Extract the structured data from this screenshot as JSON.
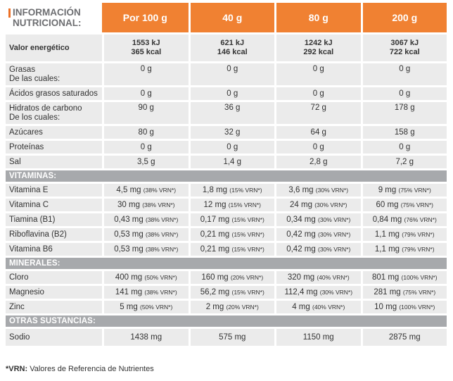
{
  "title": [
    "INFORMACIÓN",
    "NUTRICIONAL:"
  ],
  "headers": [
    "Por 100 g",
    "40 g",
    "80 g",
    "200 g"
  ],
  "energy": {
    "label": "Valor energético",
    "kj": [
      "1553 kJ",
      "621 kJ",
      "1242 kJ",
      "3067 kJ"
    ],
    "kcal": [
      "365 kcal",
      "146 kcal",
      "292 kcal",
      "722 kcal"
    ]
  },
  "macro_rows": [
    {
      "label": [
        "Grasas",
        "De las cuales:"
      ],
      "values": [
        "0 g",
        "0 g",
        "0 g",
        "0 g"
      ]
    },
    {
      "label": [
        "Ácidos grasos saturados"
      ],
      "values": [
        "0 g",
        "0 g",
        "0 g",
        "0 g"
      ]
    },
    {
      "label": [
        "Hidratos de carbono",
        "De los cuales:"
      ],
      "values": [
        "90 g",
        "36 g",
        "72 g",
        "178 g"
      ]
    },
    {
      "label": [
        "Azúcares"
      ],
      "values": [
        "80 g",
        "32 g",
        "64 g",
        "158 g"
      ]
    },
    {
      "label": [
        "Proteínas"
      ],
      "values": [
        "0 g",
        "0 g",
        "0 g",
        "0 g"
      ]
    },
    {
      "label": [
        "Sal"
      ],
      "values": [
        "3,5 g",
        "1,4 g",
        "2,8 g",
        "7,2 g"
      ]
    }
  ],
  "sections": {
    "vitamins": "VITAMINAS:",
    "minerals": "MINERALES:",
    "others": "OTRAS SUSTANCIAS:"
  },
  "vitamin_rows": [
    {
      "label": "Vitamina E",
      "values": [
        [
          "4,5 mg",
          "(38% VRN*)"
        ],
        [
          "1,8 mg",
          "(15% VRN*)"
        ],
        [
          "3,6 mg",
          "(30% VRN*)"
        ],
        [
          "9 mg",
          "(75% VRN*)"
        ]
      ]
    },
    {
      "label": "Vitamina C",
      "values": [
        [
          "30 mg",
          "(38% VRN*)"
        ],
        [
          "12 mg",
          "(15% VRN*)"
        ],
        [
          "24 mg",
          "(30% VRN*)"
        ],
        [
          "60 mg",
          "(75% VRN*)"
        ]
      ]
    },
    {
      "label": "Tiamina (B1)",
      "values": [
        [
          "0,43 mg",
          "(38% VRN*)"
        ],
        [
          "0,17 mg",
          "(15% VRN*)"
        ],
        [
          "0,34 mg",
          "(30% VRN*)"
        ],
        [
          "0,84 mg",
          "(76% VRN*)"
        ]
      ]
    },
    {
      "label": "Riboflavina (B2)",
      "values": [
        [
          "0,53 mg",
          "(38% VRN*)"
        ],
        [
          "0,21 mg",
          "(15% VRN*)"
        ],
        [
          "0,42 mg",
          "(30% VRN*)"
        ],
        [
          "1,1 mg",
          "(79% VRN*)"
        ]
      ]
    },
    {
      "label": "Vitamina B6",
      "values": [
        [
          "0,53 mg",
          "(38% VRN*)"
        ],
        [
          "0,21 mg",
          "(15% VRN*)"
        ],
        [
          "0,42 mg",
          "(30% VRN*)"
        ],
        [
          "1,1 mg",
          "(79% VRN*)"
        ]
      ]
    }
  ],
  "mineral_rows": [
    {
      "label": "Cloro",
      "values": [
        [
          "400 mg",
          "(50% VRN*)"
        ],
        [
          "160 mg",
          "(20% VRN*)"
        ],
        [
          "320 mg",
          "(40% VRN*)"
        ],
        [
          "801 mg",
          "(100% VRN*)"
        ]
      ]
    },
    {
      "label": "Magnesio",
      "values": [
        [
          "141 mg",
          "(38% VRN*)"
        ],
        [
          "56,2 mg",
          "(15% VRN*)"
        ],
        [
          "112,4 mg",
          "(30% VRN*)"
        ],
        [
          "281 mg",
          "(75% VRN*)"
        ]
      ]
    },
    {
      "label": "Zinc",
      "values": [
        [
          "5 mg",
          "(50% VRN*)"
        ],
        [
          "2 mg",
          "(20% VRN*)"
        ],
        [
          "4 mg",
          "(40% VRN*)"
        ],
        [
          "10 mg",
          "(100% VRN*)"
        ]
      ]
    }
  ],
  "other_rows": [
    {
      "label": "Sodio",
      "values": [
        "1438 mg",
        "575 mg",
        "1150 mg",
        "2875 mg"
      ]
    }
  ],
  "footnote": {
    "key": "*VRN:",
    "text": " Valores de Referencia de Nutrientes"
  },
  "colors": {
    "accent": "#f08132",
    "section": "#a7a9ac",
    "row": "#ebebeb"
  }
}
